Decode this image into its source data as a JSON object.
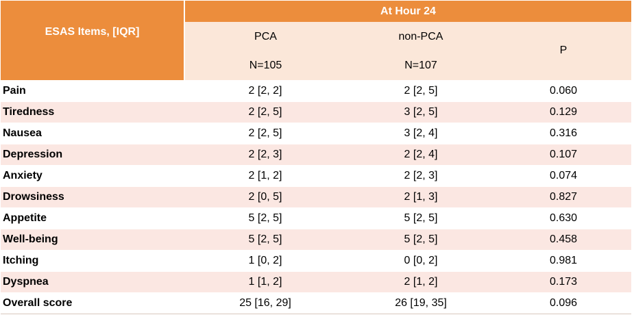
{
  "table": {
    "row_header_label": "ESAS Items, [IQR]",
    "group_header": "At Hour 24",
    "columns": [
      {
        "name": "PCA",
        "n": "N=105"
      },
      {
        "name": "non-PCA",
        "n": "N=107"
      }
    ],
    "p_header": "P",
    "rows": [
      {
        "item": "Pain",
        "pca": "2 [2, 2]",
        "nonpca": "2 [2, 5]",
        "p": "0.060"
      },
      {
        "item": "Tiredness",
        "pca": "2 [2, 5]",
        "nonpca": "3 [2, 5]",
        "p": "0.129"
      },
      {
        "item": "Nausea",
        "pca": "2 [2, 5]",
        "nonpca": "3 [2, 4]",
        "p": "0.316"
      },
      {
        "item": "Depression",
        "pca": "2 [2, 3]",
        "nonpca": "2 [2, 4]",
        "p": "0.107"
      },
      {
        "item": "Anxiety",
        "pca": "2 [1, 2]",
        "nonpca": "2 [2, 3]",
        "p": "0.074"
      },
      {
        "item": "Drowsiness",
        "pca": "2 [0, 5]",
        "nonpca": "2 [1, 3]",
        "p": "0.827"
      },
      {
        "item": "Appetite",
        "pca": "5 [2, 5]",
        "nonpca": "5 [2, 5]",
        "p": "0.630"
      },
      {
        "item": "Well-being",
        "pca": "5 [2, 5]",
        "nonpca": "5 [2, 5]",
        "p": "0.458"
      },
      {
        "item": "Itching",
        "pca": "1 [0, 2]",
        "nonpca": "0 [0, 2]",
        "p": "0.981"
      },
      {
        "item": "Dyspnea",
        "pca": "1 [1, 2]",
        "nonpca": "2 [1, 2]",
        "p": "0.173"
      },
      {
        "item": "Overall score",
        "pca": "25 [16, 29]",
        "nonpca": "26 [19, 35]",
        "p": "0.096"
      }
    ],
    "colors": {
      "header_orange": "#ec8d3c",
      "header_light": "#fbe7d9",
      "row_alt": "#fbe7e2",
      "row_plain": "#ffffff"
    }
  }
}
